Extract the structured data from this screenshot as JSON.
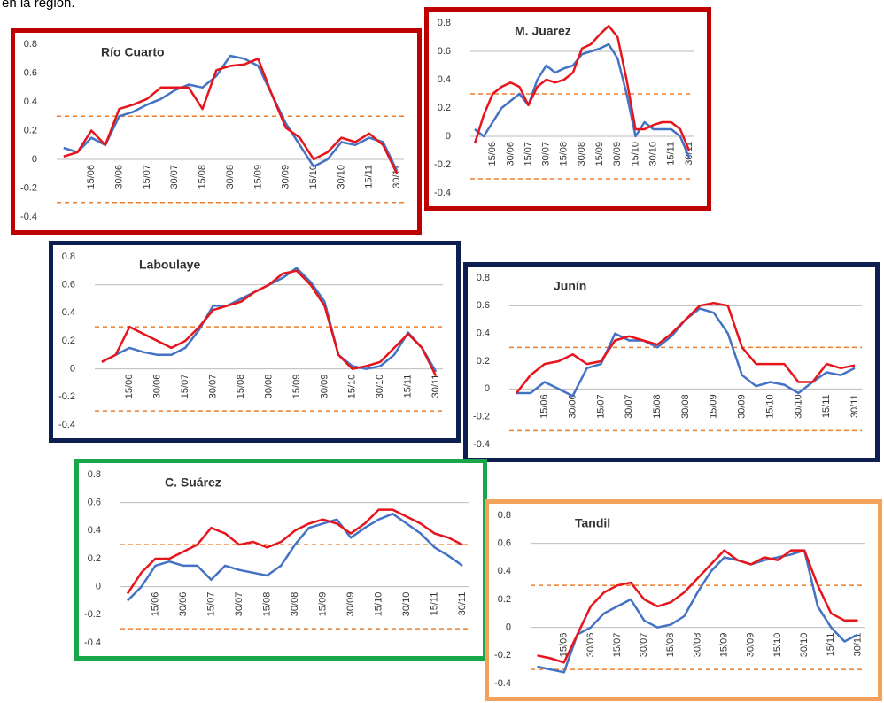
{
  "caption": "en la región.",
  "chart_data": [
    {
      "type": "line",
      "title": "Río Cuarto",
      "frame_color": "#c00000",
      "categories": [
        null,
        null,
        "15/06",
        null,
        "30/06",
        null,
        "15/07",
        null,
        "30/07",
        null,
        "15/08",
        null,
        "30/08",
        null,
        "15/09",
        null,
        "30/09",
        null,
        "15/10",
        null,
        "30/10",
        null,
        "15/11",
        null,
        "30/11"
      ],
      "series": [
        {
          "color": "#e8141b",
          "values": [
            0.02,
            0.05,
            0.2,
            0.1,
            0.35,
            0.38,
            0.42,
            0.5,
            0.5,
            0.5,
            0.35,
            0.62,
            0.65,
            0.66,
            0.7,
            0.45,
            0.22,
            0.15,
            0.0,
            0.05,
            0.15,
            0.12,
            0.18,
            0.1,
            -0.1
          ]
        },
        {
          "color": "#4472c4",
          "values": [
            0.08,
            0.05,
            0.15,
            0.1,
            0.3,
            0.33,
            0.38,
            0.42,
            0.48,
            0.52,
            0.5,
            0.58,
            0.72,
            0.7,
            0.65,
            0.45,
            0.25,
            0.1,
            -0.05,
            0.0,
            0.12,
            0.1,
            0.15,
            0.12,
            -0.08
          ]
        }
      ],
      "reference_lines": [
        0.3,
        -0.3
      ],
      "reference_color": "#ed7d31",
      "ylim": [
        -0.4,
        0.8
      ],
      "yticks": [
        -0.4,
        -0.2,
        0,
        0.2,
        0.4,
        0.6,
        0.8
      ]
    },
    {
      "type": "line",
      "title": "M. Juarez",
      "frame_color": "#c00000",
      "categories": [
        null,
        null,
        "15/06",
        null,
        "30/06",
        null,
        "15/07",
        null,
        "30/07",
        null,
        "15/08",
        null,
        "30/08",
        null,
        "15/09",
        null,
        "30/09",
        null,
        "15/10",
        null,
        "30/10",
        null,
        "15/11",
        null,
        "30/11"
      ],
      "series": [
        {
          "color": "#e8141b",
          "values": [
            -0.05,
            0.15,
            0.3,
            0.35,
            0.38,
            0.35,
            0.22,
            0.35,
            0.4,
            0.38,
            0.4,
            0.45,
            0.62,
            0.65,
            0.72,
            0.78,
            0.7,
            0.4,
            0.05,
            0.05,
            0.08,
            0.1,
            0.1,
            0.05,
            -0.1
          ]
        },
        {
          "color": "#4472c4",
          "values": [
            0.05,
            0.0,
            0.1,
            0.2,
            0.25,
            0.3,
            0.22,
            0.4,
            0.5,
            0.45,
            0.48,
            0.5,
            0.58,
            0.6,
            0.62,
            0.65,
            0.55,
            0.3,
            0.0,
            0.1,
            0.05,
            0.05,
            0.05,
            0.0,
            -0.15
          ]
        }
      ],
      "reference_lines": [
        0.3,
        -0.3
      ],
      "reference_color": "#ed7d31",
      "ylim": [
        -0.4,
        0.8
      ],
      "yticks": [
        -0.4,
        -0.2,
        0,
        0.2,
        0.4,
        0.6,
        0.8
      ]
    },
    {
      "type": "line",
      "title": "Laboulaye",
      "frame_color": "#0d1f4f",
      "categories": [
        null,
        null,
        "15/06",
        null,
        "30/06",
        null,
        "15/07",
        null,
        "30/07",
        null,
        "15/08",
        null,
        "30/08",
        null,
        "15/09",
        null,
        "30/09",
        null,
        "15/10",
        null,
        "30/10",
        null,
        "15/11",
        null,
        "30/11"
      ],
      "series": [
        {
          "color": "#e8141b",
          "values": [
            0.05,
            0.1,
            0.3,
            0.25,
            0.2,
            0.15,
            0.2,
            0.3,
            0.42,
            0.45,
            0.48,
            0.55,
            0.6,
            0.68,
            0.7,
            0.6,
            0.45,
            0.1,
            0.0,
            0.02,
            0.05,
            0.15,
            0.25,
            0.15,
            -0.05
          ]
        },
        {
          "color": "#4472c4",
          "values": [
            0.05,
            0.1,
            0.15,
            0.12,
            0.1,
            0.1,
            0.15,
            0.28,
            0.45,
            0.45,
            0.5,
            0.55,
            0.6,
            0.65,
            0.72,
            0.62,
            0.48,
            0.1,
            0.02,
            0.0,
            0.02,
            0.1,
            0.26,
            0.15,
            -0.02
          ]
        }
      ],
      "reference_lines": [
        0.3,
        -0.3
      ],
      "reference_color": "#ed7d31",
      "ylim": [
        -0.4,
        0.8
      ],
      "yticks": [
        -0.4,
        -0.2,
        0,
        0.2,
        0.4,
        0.6,
        0.8
      ]
    },
    {
      "type": "line",
      "title": "Junín",
      "frame_color": "#0d1f4f",
      "categories": [
        null,
        null,
        "15/06",
        null,
        "30/06",
        null,
        "15/07",
        null,
        "30/07",
        null,
        "15/08",
        null,
        "30/08",
        null,
        "15/09",
        null,
        "30/09",
        null,
        "15/10",
        null,
        "30/10",
        null,
        "15/11",
        null,
        "30/11"
      ],
      "series": [
        {
          "color": "#e8141b",
          "values": [
            -0.03,
            0.1,
            0.18,
            0.2,
            0.25,
            0.18,
            0.2,
            0.35,
            0.38,
            0.35,
            0.32,
            0.4,
            0.5,
            0.6,
            0.62,
            0.6,
            0.3,
            0.18,
            0.18,
            0.18,
            0.05,
            0.05,
            0.18,
            0.15,
            0.17
          ]
        },
        {
          "color": "#4472c4",
          "values": [
            -0.03,
            -0.03,
            0.05,
            0.0,
            -0.05,
            0.15,
            0.18,
            0.4,
            0.35,
            0.35,
            0.3,
            0.38,
            0.5,
            0.58,
            0.55,
            0.4,
            0.1,
            0.02,
            0.05,
            0.03,
            -0.03,
            0.05,
            0.12,
            0.1,
            0.15
          ]
        }
      ],
      "reference_lines": [
        0.3,
        -0.3
      ],
      "reference_color": "#ed7d31",
      "ylim": [
        -0.4,
        0.8
      ],
      "yticks": [
        -0.4,
        -0.2,
        0,
        0.2,
        0.4,
        0.6,
        0.8
      ]
    },
    {
      "type": "line",
      "title": "C. Suárez",
      "frame_color": "#1aa64a",
      "categories": [
        null,
        null,
        "15/06",
        null,
        "30/06",
        null,
        "15/07",
        null,
        "30/07",
        null,
        "15/08",
        null,
        "30/08",
        null,
        "15/09",
        null,
        "30/09",
        null,
        "15/10",
        null,
        "30/10",
        null,
        "15/11",
        null,
        "30/11"
      ],
      "series": [
        {
          "color": "#e8141b",
          "values": [
            -0.05,
            0.1,
            0.2,
            0.2,
            0.25,
            0.3,
            0.42,
            0.38,
            0.3,
            0.32,
            0.28,
            0.32,
            0.4,
            0.45,
            0.48,
            0.45,
            0.38,
            0.45,
            0.55,
            0.55,
            0.5,
            0.45,
            0.38,
            0.35,
            0.3
          ]
        },
        {
          "color": "#4472c4",
          "values": [
            -0.1,
            0.0,
            0.15,
            0.18,
            0.15,
            0.15,
            0.05,
            0.15,
            0.12,
            0.1,
            0.08,
            0.15,
            0.3,
            0.42,
            0.45,
            0.48,
            0.35,
            0.42,
            0.48,
            0.52,
            0.45,
            0.38,
            0.28,
            0.22,
            0.15
          ]
        }
      ],
      "reference_lines": [
        0.3,
        -0.3
      ],
      "reference_color": "#ed7d31",
      "ylim": [
        -0.4,
        0.8
      ],
      "yticks": [
        -0.4,
        -0.2,
        0,
        0.2,
        0.4,
        0.6,
        0.8
      ]
    },
    {
      "type": "line",
      "title": "Tandil",
      "frame_color": "#f4a25b",
      "categories": [
        null,
        null,
        "15/06",
        null,
        "30/06",
        null,
        "15/07",
        null,
        "30/07",
        null,
        "15/08",
        null,
        "30/08",
        null,
        "15/09",
        null,
        "30/09",
        null,
        "15/10",
        null,
        "30/10",
        null,
        "15/11",
        null,
        "30/11"
      ],
      "series": [
        {
          "color": "#e8141b",
          "values": [
            -0.2,
            -0.22,
            -0.25,
            -0.05,
            0.15,
            0.25,
            0.3,
            0.32,
            0.2,
            0.15,
            0.18,
            0.25,
            0.35,
            0.45,
            0.55,
            0.48,
            0.45,
            0.5,
            0.48,
            0.55,
            0.55,
            0.3,
            0.1,
            0.05,
            0.05
          ]
        },
        {
          "color": "#4472c4",
          "values": [
            -0.28,
            -0.3,
            -0.32,
            -0.05,
            0.0,
            0.1,
            0.15,
            0.2,
            0.05,
            0.0,
            0.02,
            0.08,
            0.25,
            0.4,
            0.5,
            0.48,
            0.45,
            0.48,
            0.5,
            0.52,
            0.55,
            0.15,
            0.0,
            -0.1,
            -0.05
          ]
        }
      ],
      "reference_lines": [
        0.3,
        -0.3
      ],
      "reference_color": "#ed7d31",
      "ylim": [
        -0.4,
        0.8
      ],
      "yticks": [
        -0.4,
        -0.2,
        0,
        0.2,
        0.4,
        0.6,
        0.8
      ]
    }
  ]
}
